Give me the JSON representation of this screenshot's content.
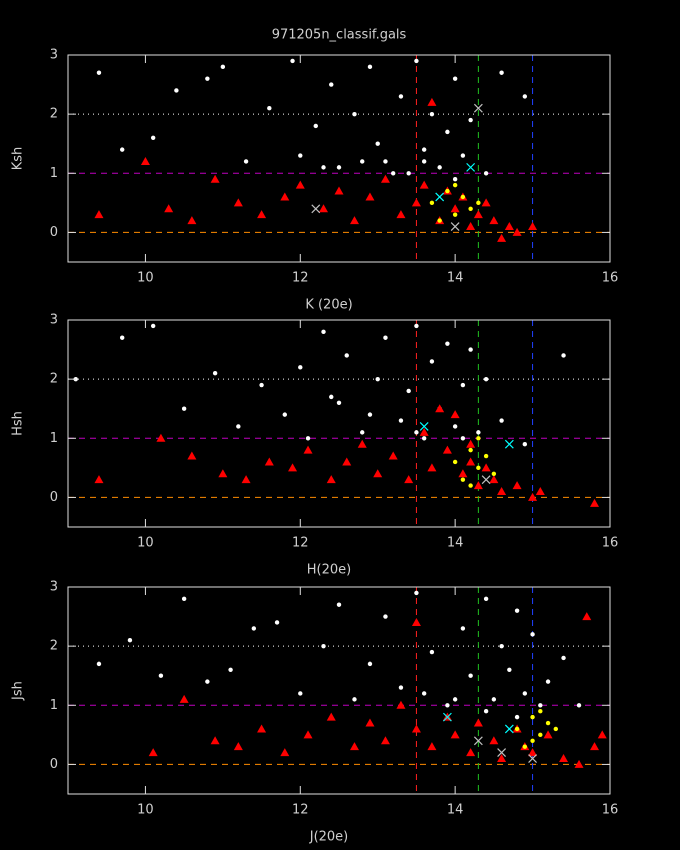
{
  "chart_data": [
    {
      "type": "scatter",
      "title": "971205n_classif.gals",
      "xlabel": "K (20e)",
      "ylabel": "Ksh",
      "xlim": [
        9,
        16
      ],
      "ylim": [
        -0.5,
        3
      ],
      "xticks": [
        10,
        12,
        14,
        16
      ],
      "yticks": [
        0,
        1,
        2,
        3
      ],
      "hlines": [
        {
          "value": 0,
          "color": "#ff8c00",
          "style": "dashed"
        },
        {
          "value": 1,
          "color": "#c000c0",
          "style": "dashed"
        },
        {
          "value": 2,
          "color": "#ffffff",
          "style": "dotted"
        }
      ],
      "vlines": [
        {
          "value": 13.5,
          "color": "#ff2020",
          "style": "dashed"
        },
        {
          "value": 14.3,
          "color": "#20c020",
          "style": "dashed"
        },
        {
          "value": 15,
          "color": "#2040ff",
          "style": "dashed"
        }
      ],
      "series": [
        {
          "color": "#ffffff",
          "marker": "dot",
          "x": [
            9.4,
            9.7,
            10.1,
            10.4,
            10.8,
            11.0,
            11.3,
            11.6,
            11.9,
            12.0,
            12.2,
            12.4,
            12.5,
            12.7,
            12.9,
            13.0,
            13.1,
            13.3,
            13.4,
            13.5,
            13.6,
            13.7,
            13.8,
            13.9,
            14.0,
            14.1,
            14.2,
            14.4,
            14.6,
            14.9,
            12.8,
            13.2,
            13.6,
            14.0,
            12.3
          ],
          "y": [
            2.7,
            1.4,
            1.6,
            2.4,
            2.6,
            2.8,
            1.2,
            2.1,
            2.9,
            1.3,
            1.8,
            2.5,
            1.1,
            2.0,
            2.8,
            1.5,
            1.2,
            2.3,
            1.0,
            2.9,
            1.4,
            2.0,
            1.1,
            1.7,
            2.6,
            1.3,
            1.9,
            1.0,
            2.7,
            2.3,
            1.2,
            1.0,
            1.2,
            0.9,
            1.1
          ]
        },
        {
          "color": "#ff0000",
          "marker": "triangle",
          "x": [
            9.4,
            10.0,
            10.3,
            10.6,
            10.9,
            11.2,
            11.5,
            11.8,
            12.0,
            12.3,
            12.5,
            12.7,
            12.9,
            13.1,
            13.3,
            13.5,
            13.6,
            13.8,
            13.9,
            14.0,
            14.1,
            14.2,
            14.3,
            14.4,
            14.5,
            14.6,
            14.7,
            14.8,
            15.0,
            13.7
          ],
          "y": [
            0.3,
            1.2,
            0.4,
            0.2,
            0.9,
            0.5,
            0.3,
            0.6,
            0.8,
            0.4,
            0.7,
            0.2,
            0.6,
            0.9,
            0.3,
            0.5,
            0.8,
            0.2,
            0.7,
            0.4,
            0.6,
            0.1,
            0.3,
            0.5,
            0.2,
            -0.1,
            0.1,
            0.0,
            0.1,
            2.2
          ]
        },
        {
          "color": "#ffff00",
          "marker": "dot",
          "x": [
            13.7,
            13.9,
            14.0,
            14.1,
            14.2,
            13.8,
            14.3,
            14.0
          ],
          "y": [
            0.5,
            0.7,
            0.3,
            0.6,
            0.4,
            0.2,
            0.5,
            0.8
          ]
        },
        {
          "color": "#00ffff",
          "marker": "x",
          "x": [
            13.8,
            14.2
          ],
          "y": [
            0.6,
            1.1
          ]
        },
        {
          "color": "#c0c0c0",
          "marker": "x",
          "x": [
            14.3,
            14.0,
            12.2
          ],
          "y": [
            2.1,
            0.1,
            0.4
          ]
        }
      ]
    },
    {
      "type": "scatter",
      "xlabel": "H(20e)",
      "ylabel": "Hsh",
      "xlim": [
        9,
        16
      ],
      "ylim": [
        -0.5,
        3
      ],
      "xticks": [
        10,
        12,
        14,
        16
      ],
      "yticks": [
        0,
        1,
        2,
        3
      ],
      "hlines": [
        {
          "value": 0,
          "color": "#ff8c00",
          "style": "dashed"
        },
        {
          "value": 1,
          "color": "#c000c0",
          "style": "dashed"
        },
        {
          "value": 2,
          "color": "#ffffff",
          "style": "dotted"
        }
      ],
      "vlines": [
        {
          "value": 13.5,
          "color": "#ff2020",
          "style": "dashed"
        },
        {
          "value": 14.3,
          "color": "#20c020",
          "style": "dashed"
        },
        {
          "value": 15,
          "color": "#2040ff",
          "style": "dashed"
        }
      ],
      "series": [
        {
          "color": "#ffffff",
          "marker": "dot",
          "x": [
            9.1,
            9.7,
            10.1,
            10.5,
            10.9,
            11.2,
            11.5,
            11.8,
            12.0,
            12.1,
            12.3,
            12.5,
            12.6,
            12.8,
            13.0,
            13.1,
            13.3,
            13.4,
            13.5,
            13.6,
            13.7,
            13.8,
            13.9,
            14.0,
            14.1,
            14.2,
            14.3,
            14.4,
            14.6,
            14.9,
            15.4,
            12.9,
            13.5,
            14.1,
            12.4
          ],
          "y": [
            2.0,
            2.7,
            2.9,
            1.5,
            2.1,
            1.2,
            1.9,
            1.4,
            2.2,
            1.0,
            2.8,
            1.6,
            2.4,
            1.1,
            2.0,
            2.7,
            1.3,
            1.8,
            2.9,
            1.0,
            2.3,
            1.5,
            2.6,
            1.2,
            1.9,
            2.5,
            1.1,
            2.0,
            1.3,
            0.9,
            2.4,
            1.4,
            1.1,
            1.0,
            1.7
          ]
        },
        {
          "color": "#ff0000",
          "marker": "triangle",
          "x": [
            9.4,
            10.2,
            10.6,
            11.0,
            11.3,
            11.6,
            11.9,
            12.1,
            12.4,
            12.6,
            12.8,
            13.0,
            13.2,
            13.4,
            13.6,
            13.7,
            13.9,
            14.0,
            14.1,
            14.2,
            14.3,
            14.4,
            14.5,
            14.6,
            14.8,
            15.0,
            15.1,
            15.8,
            13.8,
            14.2
          ],
          "y": [
            0.3,
            1.0,
            0.7,
            0.4,
            0.3,
            0.6,
            0.5,
            0.8,
            0.3,
            0.6,
            0.9,
            0.4,
            0.7,
            0.3,
            1.1,
            0.5,
            0.8,
            1.4,
            0.4,
            0.6,
            0.2,
            0.5,
            0.3,
            0.1,
            0.2,
            0.0,
            0.1,
            -0.1,
            1.5,
            0.9
          ]
        },
        {
          "color": "#ffff00",
          "marker": "dot",
          "x": [
            14.0,
            14.2,
            14.3,
            14.4,
            14.1,
            14.5,
            14.3,
            14.2
          ],
          "y": [
            0.6,
            0.8,
            0.5,
            0.7,
            0.3,
            0.4,
            1.0,
            0.2
          ]
        },
        {
          "color": "#00ffff",
          "marker": "x",
          "x": [
            13.6,
            14.7
          ],
          "y": [
            1.2,
            0.9
          ]
        },
        {
          "color": "#c0c0c0",
          "marker": "x",
          "x": [
            14.4
          ],
          "y": [
            0.3
          ]
        }
      ]
    },
    {
      "type": "scatter",
      "xlabel": "J(20e)",
      "ylabel": "Jsh",
      "xlim": [
        9,
        16
      ],
      "ylim": [
        -0.5,
        3
      ],
      "xticks": [
        10,
        12,
        14,
        16
      ],
      "yticks": [
        0,
        1,
        2,
        3
      ],
      "hlines": [
        {
          "value": 0,
          "color": "#ff8c00",
          "style": "dashed"
        },
        {
          "value": 1,
          "color": "#c000c0",
          "style": "dashed"
        },
        {
          "value": 2,
          "color": "#ffffff",
          "style": "dotted"
        }
      ],
      "vlines": [
        {
          "value": 13.5,
          "color": "#ff2020",
          "style": "dashed"
        },
        {
          "value": 14.3,
          "color": "#20c020",
          "style": "dashed"
        },
        {
          "value": 15,
          "color": "#2040ff",
          "style": "dashed"
        }
      ],
      "series": [
        {
          "color": "#ffffff",
          "marker": "dot",
          "x": [
            9.4,
            9.8,
            10.2,
            10.5,
            10.8,
            11.1,
            11.4,
            11.7,
            12.0,
            12.3,
            12.5,
            12.7,
            12.9,
            13.1,
            13.3,
            13.5,
            13.7,
            13.9,
            14.1,
            14.2,
            14.4,
            14.5,
            14.6,
            14.7,
            14.8,
            14.9,
            15.0,
            15.2,
            15.4,
            15.6,
            13.6,
            14.0,
            14.4,
            14.8,
            15.1
          ],
          "y": [
            1.7,
            2.1,
            1.5,
            2.8,
            1.4,
            1.6,
            2.3,
            2.4,
            1.2,
            2.0,
            2.7,
            1.1,
            1.7,
            2.5,
            1.3,
            2.9,
            1.9,
            1.0,
            2.3,
            1.5,
            2.8,
            1.1,
            2.0,
            1.6,
            2.6,
            1.2,
            2.2,
            1.4,
            1.8,
            1.0,
            1.2,
            1.1,
            0.9,
            0.8,
            1.0
          ]
        },
        {
          "color": "#ff0000",
          "marker": "triangle",
          "x": [
            10.1,
            10.5,
            10.9,
            11.2,
            11.5,
            11.8,
            12.1,
            12.4,
            12.7,
            12.9,
            13.1,
            13.3,
            13.5,
            13.7,
            13.9,
            14.0,
            14.2,
            14.3,
            14.5,
            14.6,
            14.8,
            14.9,
            15.0,
            15.2,
            15.4,
            15.6,
            15.8,
            15.9,
            13.5,
            15.7
          ],
          "y": [
            0.2,
            1.1,
            0.4,
            0.3,
            0.6,
            0.2,
            0.5,
            0.8,
            0.3,
            0.7,
            0.4,
            1.0,
            0.6,
            0.3,
            0.8,
            0.5,
            0.2,
            0.7,
            0.4,
            0.1,
            0.6,
            0.3,
            0.2,
            0.5,
            0.1,
            0.0,
            0.3,
            0.5,
            2.4,
            2.5
          ]
        },
        {
          "color": "#ffff00",
          "marker": "dot",
          "x": [
            14.8,
            15.0,
            15.1,
            15.2,
            14.9,
            15.3,
            15.0,
            15.1
          ],
          "y": [
            0.6,
            0.8,
            0.5,
            0.7,
            0.3,
            0.6,
            0.4,
            0.9
          ]
        },
        {
          "color": "#00ffff",
          "marker": "x",
          "x": [
            13.9,
            14.7
          ],
          "y": [
            0.8,
            0.6
          ]
        },
        {
          "color": "#c0c0c0",
          "marker": "x",
          "x": [
            14.6,
            15.0,
            14.3
          ],
          "y": [
            0.2,
            0.1,
            0.4
          ]
        }
      ]
    }
  ]
}
